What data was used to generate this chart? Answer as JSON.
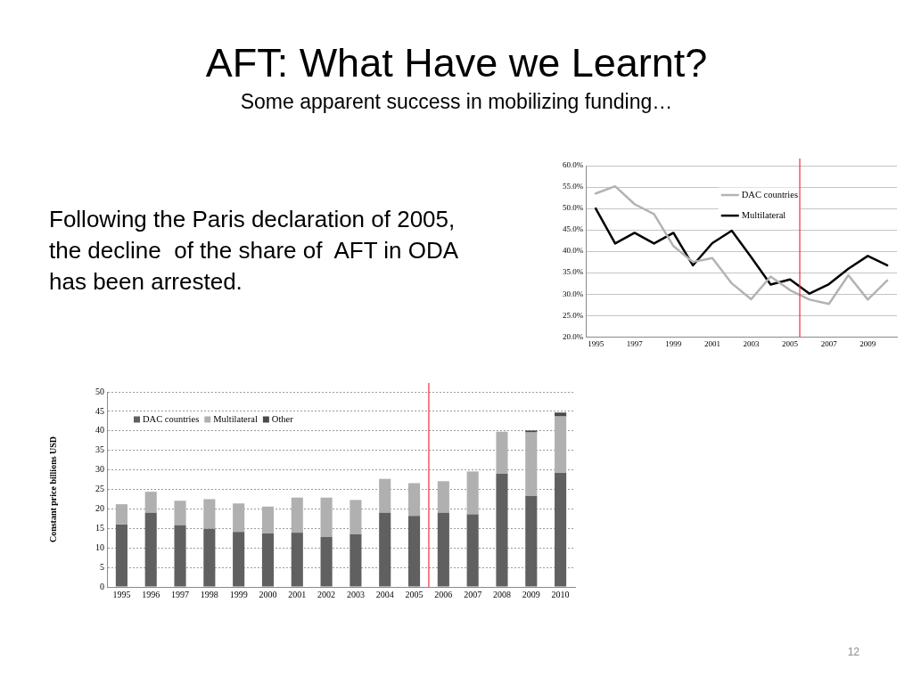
{
  "chart_data": [
    {
      "type": "line",
      "title": "AFT: What Have we Learnt?",
      "subtitle": "Some apparent success in mobilizing funding…",
      "annotations": [
        "Following the Paris declaration of 2005, the decline  of the share of  AFT in ODA has been arrested."
      ],
      "x": [
        1995,
        1996,
        1997,
        1998,
        1999,
        2000,
        2001,
        2002,
        2003,
        2004,
        2005,
        2006,
        2007,
        2008,
        2009,
        2010
      ],
      "series": [
        {
          "name": "DAC countries",
          "color": "#b3b3b3",
          "values": [
            53.5,
            55.2,
            51.0,
            48.7,
            41.2,
            37.5,
            38.4,
            32.5,
            28.8,
            34.1,
            30.9,
            28.7,
            27.7,
            34.4,
            28.7,
            33.2
          ]
        },
        {
          "name": "Multilateral",
          "color": "#000000",
          "values": [
            50.0,
            41.8,
            44.3,
            41.8,
            44.3,
            36.7,
            41.9,
            44.8,
            38.6,
            32.2,
            33.4,
            30.1,
            32.3,
            35.9,
            38.9,
            36.7
          ]
        }
      ],
      "xlim": [
        1994.5,
        2010.5
      ],
      "xticks": [
        1995,
        1997,
        1999,
        2001,
        2003,
        2005,
        2007,
        2009
      ],
      "ylim": [
        20,
        60
      ],
      "yticks": [
        {
          "value": 20,
          "label": "20.0%"
        },
        {
          "value": 25,
          "label": "25.0%"
        },
        {
          "value": 30,
          "label": "30.0%"
        },
        {
          "value": 35,
          "label": "35.0%"
        },
        {
          "value": 40,
          "label": "40.0%"
        },
        {
          "value": 45,
          "label": "45.0%"
        },
        {
          "value": 50,
          "label": "50.0%"
        },
        {
          "value": 55,
          "label": "55.0%"
        },
        {
          "value": 60,
          "label": "60.0%"
        }
      ],
      "grid": "y",
      "legend": "top right",
      "ref_lines": [
        {
          "axis": "x",
          "value": 2005.5,
          "color": "#e8313f"
        }
      ]
    },
    {
      "type": "bar",
      "stacked": true,
      "ylabel": "Constant price billions USD",
      "annotations": [
        "12"
      ],
      "x": [
        1995,
        1996,
        1997,
        1998,
        1999,
        2000,
        2001,
        2002,
        2003,
        2004,
        2005,
        2006,
        2007,
        2008,
        2009,
        2010
      ],
      "series": [
        {
          "name": "DAC countries",
          "color": "#606060",
          "values": [
            16,
            19,
            15.8,
            14.9,
            14.1,
            13.7,
            13.9,
            12.8,
            13.5,
            19,
            18.2,
            19,
            18.6,
            29,
            23.3,
            29.2
          ]
        },
        {
          "name": "Multilateral",
          "color": "#b0b0b0",
          "values": [
            5.2,
            5.4,
            6.3,
            7.6,
            7.3,
            6.9,
            9,
            10.1,
            8.8,
            8.7,
            8.4,
            8.1,
            11,
            10.8,
            16.3,
            14.5
          ]
        },
        {
          "name": "Other",
          "color": "#4a4a4a",
          "values": [
            null,
            null,
            null,
            null,
            null,
            null,
            null,
            null,
            null,
            null,
            null,
            null,
            null,
            null,
            0.5,
            1
          ]
        }
      ],
      "xlim": [
        1994.5,
        2010.5
      ],
      "xticks": [
        1995,
        1996,
        1997,
        1998,
        1999,
        2000,
        2001,
        2002,
        2003,
        2004,
        2005,
        2006,
        2007,
        2008,
        2009,
        2010
      ],
      "ylim": [
        0,
        50
      ],
      "yticks": [
        0,
        5,
        10,
        15,
        20,
        25,
        30,
        35,
        40,
        45,
        50
      ],
      "grid": "y",
      "legend": "top left",
      "ref_lines": [
        {
          "axis": "x",
          "value": 2005.5,
          "color": "#e8313f"
        }
      ]
    }
  ]
}
